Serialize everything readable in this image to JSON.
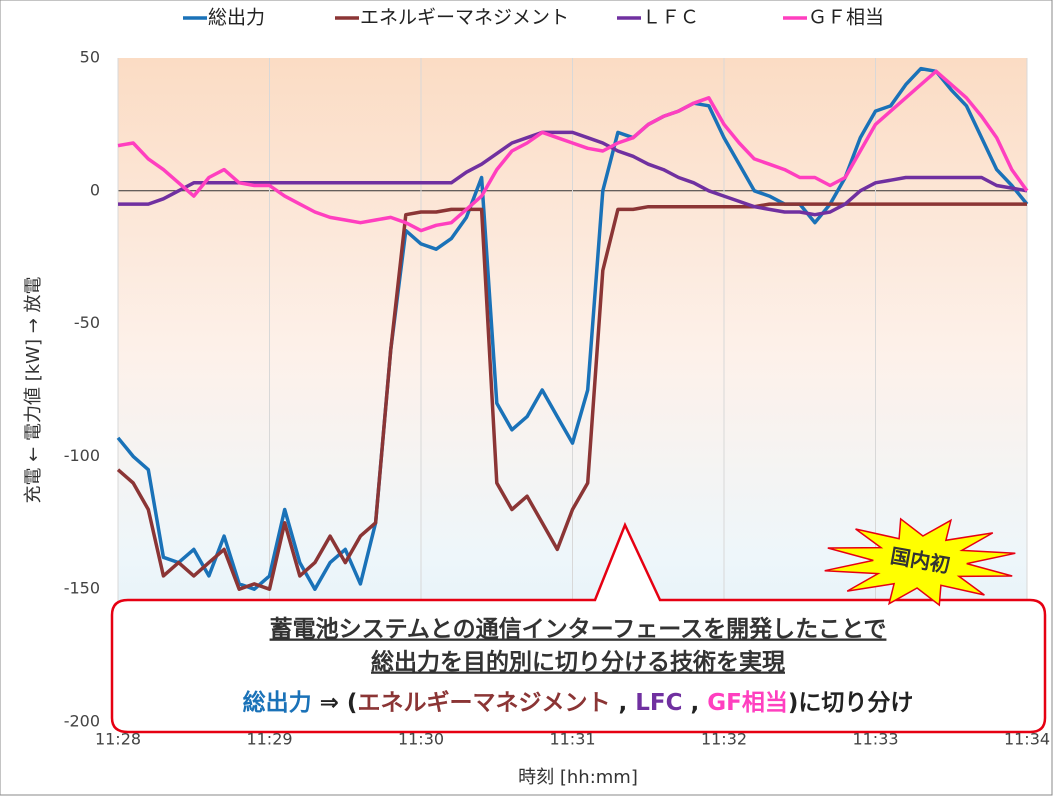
{
  "chart_data": {
    "type": "line",
    "xlabel": "時刻 [hh:mm]",
    "ylabel": "充電 ← 電力値 [kW] → 放電",
    "x": [
      688.0,
      688.1,
      688.2,
      688.3,
      688.4,
      688.5,
      688.6,
      688.7,
      688.8,
      688.9,
      689.0,
      689.1,
      689.2,
      689.3,
      689.4,
      689.5,
      689.6,
      689.7,
      689.8,
      689.9,
      690.0,
      690.1,
      690.2,
      690.3,
      690.4,
      690.5,
      690.6,
      690.7,
      690.8,
      690.9,
      691.0,
      691.1,
      691.2,
      691.3,
      691.4,
      691.5,
      691.6,
      691.7,
      691.8,
      691.9,
      692.0,
      692.1,
      692.2,
      692.3,
      692.4,
      692.5,
      692.6,
      692.7,
      692.8,
      692.9,
      693.0,
      693.1,
      693.2,
      693.3,
      693.4,
      693.5,
      693.6,
      693.7,
      693.8,
      693.9,
      694.0
    ],
    "xlim": [
      688,
      694
    ],
    "xticks": [
      {
        "value": 688,
        "label": "11:28"
      },
      {
        "value": 689,
        "label": "11:29"
      },
      {
        "value": 690,
        "label": "11:30"
      },
      {
        "value": 691,
        "label": "11:31"
      },
      {
        "value": 692,
        "label": "11:32"
      },
      {
        "value": 693,
        "label": "11:33"
      },
      {
        "value": 694,
        "label": "11:34"
      }
    ],
    "ylim": [
      -200,
      50
    ],
    "yticks": [
      -200,
      -150,
      -100,
      -50,
      0,
      50
    ],
    "grid": true,
    "legend": "top",
    "series": [
      {
        "name": "総出力",
        "color": "#1a72b8",
        "values": [
          -93,
          -100,
          -105,
          -138,
          -140,
          -135,
          -145,
          -130,
          -148,
          -150,
          -145,
          -120,
          -140,
          -150,
          -140,
          -135,
          -148,
          -125,
          -60,
          -15,
          -20,
          -22,
          -18,
          -10,
          5,
          -80,
          -90,
          -85,
          -75,
          -85,
          -95,
          -75,
          0,
          22,
          20,
          25,
          28,
          30,
          33,
          32,
          20,
          10,
          0,
          -2,
          -5,
          -5,
          -12,
          -5,
          5,
          20,
          30,
          32,
          40,
          46,
          45,
          38,
          32,
          20,
          8,
          2,
          -5
        ]
      },
      {
        "name": "エネルギーマネジメント",
        "color": "#8b3535",
        "values": [
          -105,
          -110,
          -120,
          -145,
          -140,
          -145,
          -140,
          -135,
          -150,
          -148,
          -150,
          -125,
          -145,
          -140,
          -130,
          -140,
          -130,
          -125,
          -60,
          -9,
          -8,
          -8,
          -7,
          -7,
          -7,
          -110,
          -120,
          -115,
          -125,
          -135,
          -120,
          -110,
          -30,
          -7,
          -7,
          -6,
          -6,
          -6,
          -6,
          -6,
          -6,
          -6,
          -6,
          -5,
          -5,
          -5,
          -5,
          -5,
          -5,
          -5,
          -5,
          -5,
          -5,
          -5,
          -5,
          -5,
          -5,
          -5,
          -5,
          -5,
          -5
        ]
      },
      {
        "name": "ＬＦＣ",
        "color": "#7030a0",
        "values": [
          -5,
          -5,
          -5,
          -3,
          0,
          3,
          3,
          3,
          3,
          3,
          3,
          3,
          3,
          3,
          3,
          3,
          3,
          3,
          3,
          3,
          3,
          3,
          3,
          7,
          10,
          14,
          18,
          20,
          22,
          22,
          22,
          20,
          18,
          15,
          13,
          10,
          8,
          5,
          3,
          0,
          -2,
          -4,
          -6,
          -7,
          -8,
          -8,
          -9,
          -8,
          -5,
          0,
          3,
          4,
          5,
          5,
          5,
          5,
          5,
          5,
          2,
          1,
          0
        ]
      },
      {
        "name": "ＧＦ相当",
        "color": "#ff3fbf",
        "values": [
          17,
          18,
          12,
          8,
          3,
          -2,
          5,
          8,
          3,
          2,
          2,
          -2,
          -5,
          -8,
          -10,
          -11,
          -12,
          -11,
          -10,
          -12,
          -15,
          -13,
          -12,
          -7,
          -2,
          8,
          15,
          18,
          22,
          20,
          18,
          16,
          15,
          18,
          20,
          25,
          28,
          30,
          33,
          35,
          25,
          18,
          12,
          10,
          8,
          5,
          5,
          2,
          5,
          15,
          25,
          30,
          35,
          40,
          45,
          40,
          35,
          28,
          20,
          8,
          0
        ]
      }
    ],
    "callout": {
      "lines": [
        "蓄電池システムとの通信インターフェースを開発したことで",
        "総出力を目的別に切り分ける技術を実現"
      ],
      "line_color": "#e60012",
      "summary": [
        {
          "text": "総出力",
          "color": "#1a72b8"
        },
        {
          "text": " ⇒ (",
          "color": "#222222"
        },
        {
          "text": "エネルギーマネジメント",
          "color": "#8b3535"
        },
        {
          "text": " , ",
          "color": "#222222"
        },
        {
          "text": "LFC",
          "color": "#7030a0"
        },
        {
          "text": " , ",
          "color": "#222222"
        },
        {
          "text": "GF相当",
          "color": "#ff3fbf"
        },
        {
          "text": ")に切り分け",
          "color": "#222222"
        }
      ],
      "badge": "国内初"
    }
  }
}
